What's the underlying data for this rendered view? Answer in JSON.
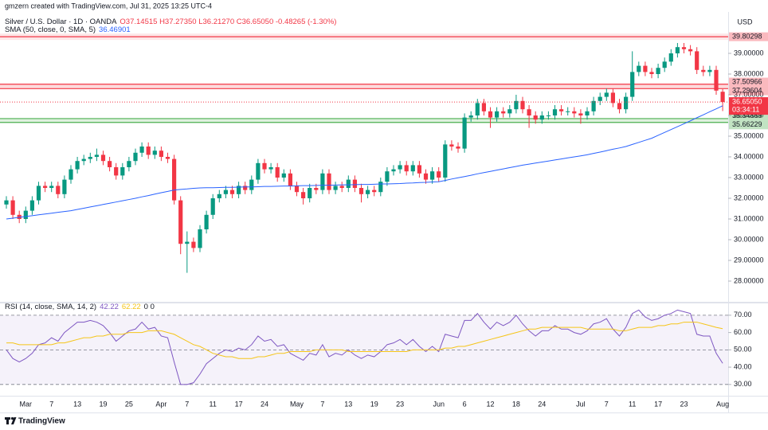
{
  "header": {
    "created": "gmzern created with TradingView.com, Jul 31, 2025 13:25 UTC-4",
    "symbol": "Silver / U.S. Dollar · 1D · OANDA",
    "quote": "O37.14515 H37.27350 L36.21270 C36.65050 -0.48265 (-1.30%)"
  },
  "chart_data": [
    {
      "type": "candlestick",
      "currency": "USD",
      "categories": [
        null,
        null,
        null,
        "Mar",
        null,
        null,
        null,
        "7",
        null,
        null,
        null,
        "13",
        null,
        null,
        null,
        "19",
        null,
        null,
        null,
        "25",
        null,
        null,
        null,
        null,
        "Apr",
        null,
        null,
        null,
        "7",
        null,
        null,
        null,
        "11",
        null,
        null,
        null,
        "17",
        null,
        null,
        null,
        "24",
        null,
        null,
        null,
        null,
        "May",
        null,
        null,
        null,
        "7",
        null,
        null,
        null,
        "13",
        null,
        null,
        null,
        "19",
        null,
        null,
        null,
        "23",
        null,
        null,
        null,
        null,
        null,
        "Jun",
        null,
        null,
        null,
        "6",
        null,
        null,
        null,
        "12",
        null,
        null,
        null,
        "18",
        null,
        null,
        null,
        "24",
        null,
        null,
        null,
        null,
        null,
        "Jul",
        null,
        null,
        null,
        "7",
        null,
        null,
        null,
        "11",
        null,
        null,
        null,
        "17",
        null,
        null,
        null,
        "23",
        null,
        null,
        null,
        null,
        null,
        "Aug"
      ],
      "ohlc": {
        "up_color": "#089981",
        "down_color": "#f23645",
        "open": [
          31.7,
          31.9,
          31.2,
          31.0,
          31.4,
          31.9,
          32.6,
          32.5,
          32.6,
          32.2,
          32.9,
          33.4,
          33.8,
          33.9,
          34.0,
          34.1,
          33.8,
          33.5,
          33.1,
          33.5,
          33.8,
          34.2,
          34.5,
          34.1,
          34.3,
          34.0,
          33.9,
          31.9,
          29.8,
          29.9,
          29.6,
          30.5,
          31.2,
          32.0,
          32.2,
          32.4,
          32.2,
          32.6,
          32.4,
          32.9,
          33.7,
          33.4,
          33.5,
          33.0,
          33.2,
          32.6,
          32.3,
          32.0,
          32.5,
          32.4,
          33.2,
          32.4,
          32.6,
          32.5,
          32.9,
          32.5,
          32.2,
          32.4,
          32.3,
          32.8,
          33.3,
          33.4,
          33.6,
          33.3,
          33.6,
          33.2,
          32.9,
          33.3,
          33.0,
          34.6,
          34.5,
          34.4,
          35.9,
          36.0,
          36.6,
          36.2,
          35.9,
          36.2,
          36.1,
          36.3,
          36.7,
          36.3,
          36.0,
          35.8,
          36.0,
          36.0,
          36.3,
          36.2,
          36.2,
          36.1,
          36.0,
          36.2,
          36.7,
          36.9,
          37.1,
          36.6,
          36.3,
          36.9,
          38.1,
          38.4,
          38.1,
          38.0,
          38.3,
          38.6,
          39.0,
          39.3,
          39.2,
          39.1,
          38.2,
          38.1,
          38.2,
          37.14515
        ],
        "high": [
          32.1,
          32.1,
          31.4,
          31.6,
          32.1,
          32.8,
          32.8,
          32.8,
          32.8,
          33.1,
          33.6,
          34.0,
          34.1,
          34.2,
          34.4,
          34.3,
          34.0,
          33.7,
          33.7,
          34.0,
          34.4,
          34.7,
          34.7,
          34.5,
          34.5,
          34.2,
          34.1,
          32.1,
          30.4,
          30.1,
          30.7,
          31.4,
          32.2,
          32.4,
          32.6,
          32.6,
          32.8,
          32.8,
          33.1,
          33.9,
          33.9,
          33.7,
          33.7,
          33.4,
          33.4,
          32.8,
          32.5,
          32.7,
          32.7,
          33.4,
          33.4,
          32.8,
          32.8,
          33.1,
          33.1,
          32.7,
          32.6,
          32.6,
          33.0,
          33.5,
          33.6,
          33.8,
          33.8,
          33.8,
          33.8,
          33.4,
          33.5,
          33.5,
          34.8,
          34.8,
          34.7,
          36.1,
          36.2,
          36.8,
          36.8,
          36.4,
          36.4,
          36.4,
          36.5,
          37.0,
          36.9,
          36.5,
          36.2,
          36.2,
          36.2,
          36.5,
          36.5,
          36.4,
          36.4,
          36.3,
          36.4,
          36.9,
          37.1,
          37.3,
          37.3,
          36.8,
          37.1,
          39.1,
          38.6,
          38.6,
          38.3,
          38.5,
          38.8,
          39.2,
          39.5,
          39.5,
          39.4,
          39.3,
          38.4,
          38.4,
          38.4,
          37.2735
        ],
        "low": [
          31.5,
          31.0,
          30.8,
          30.8,
          31.2,
          31.7,
          32.3,
          32.3,
          32.0,
          32.0,
          32.7,
          33.2,
          33.6,
          33.7,
          33.8,
          33.6,
          33.3,
          32.9,
          32.9,
          33.3,
          33.6,
          34.0,
          33.9,
          33.9,
          33.8,
          33.7,
          31.7,
          29.3,
          28.4,
          29.4,
          29.4,
          30.3,
          31.0,
          31.8,
          32.0,
          32.0,
          32.0,
          32.2,
          32.2,
          32.7,
          33.2,
          33.2,
          32.8,
          32.8,
          32.4,
          32.1,
          31.7,
          31.8,
          32.2,
          32.2,
          32.2,
          32.2,
          32.3,
          32.3,
          32.3,
          31.8,
          32.0,
          32.1,
          32.1,
          32.6,
          33.1,
          33.2,
          33.1,
          33.1,
          33.0,
          32.7,
          32.7,
          32.8,
          32.8,
          34.3,
          34.2,
          34.2,
          35.7,
          35.8,
          36.0,
          35.4,
          35.7,
          35.9,
          35.9,
          36.1,
          36.1,
          35.4,
          35.6,
          35.6,
          35.8,
          35.8,
          36.0,
          36.0,
          35.9,
          35.6,
          35.8,
          36.0,
          36.5,
          36.7,
          36.4,
          36.1,
          36.1,
          36.7,
          37.9,
          37.9,
          37.8,
          37.8,
          38.1,
          38.4,
          38.8,
          39.0,
          38.9,
          38.0,
          37.9,
          37.9,
          37.0,
          36.2127
        ],
        "close": [
          31.9,
          31.2,
          31.0,
          31.4,
          31.9,
          32.6,
          32.5,
          32.6,
          32.2,
          32.9,
          33.4,
          33.8,
          33.9,
          34.0,
          34.1,
          33.8,
          33.5,
          33.1,
          33.5,
          33.8,
          34.2,
          34.5,
          34.1,
          34.3,
          34.0,
          33.9,
          31.9,
          29.8,
          29.9,
          29.6,
          30.5,
          31.2,
          32.0,
          32.2,
          32.4,
          32.2,
          32.6,
          32.4,
          32.9,
          33.7,
          33.4,
          33.5,
          33.0,
          33.2,
          32.6,
          32.3,
          32.0,
          32.5,
          32.4,
          33.2,
          32.4,
          32.6,
          32.5,
          32.9,
          32.5,
          32.2,
          32.4,
          32.3,
          32.8,
          33.3,
          33.4,
          33.6,
          33.3,
          33.6,
          33.2,
          32.9,
          33.3,
          33.0,
          34.6,
          34.5,
          34.4,
          35.9,
          36.0,
          36.6,
          36.2,
          35.9,
          36.2,
          36.1,
          36.3,
          36.7,
          36.3,
          36.0,
          35.8,
          36.0,
          36.0,
          36.3,
          36.2,
          36.2,
          36.1,
          36.0,
          36.2,
          36.7,
          36.9,
          37.1,
          36.6,
          36.3,
          36.9,
          38.1,
          38.4,
          38.1,
          38.0,
          38.3,
          38.6,
          39.0,
          39.3,
          39.2,
          39.1,
          38.2,
          38.1,
          38.2,
          37.2,
          36.6505
        ]
      },
      "series": [
        {
          "name": "SMA (50, close, 0, SMA, 5)",
          "color": "#2962ff",
          "values": [
            31.0,
            31.04,
            31.08,
            31.12,
            31.16,
            31.2,
            31.24,
            31.28,
            31.32,
            31.36,
            31.4,
            31.46,
            31.52,
            31.58,
            31.64,
            31.7,
            31.76,
            31.82,
            31.88,
            31.94,
            32.0,
            32.07,
            32.13,
            32.2,
            32.27,
            32.33,
            32.4,
            32.43,
            32.45,
            32.48,
            32.5,
            32.51,
            32.51,
            32.52,
            32.53,
            32.53,
            32.54,
            32.55,
            32.55,
            32.56,
            32.57,
            32.57,
            32.58,
            32.59,
            32.59,
            32.6,
            32.61,
            32.61,
            32.62,
            32.63,
            32.63,
            32.64,
            32.65,
            32.65,
            32.66,
            32.67,
            32.67,
            32.68,
            32.69,
            32.69,
            32.7,
            32.71,
            32.73,
            32.74,
            32.76,
            32.77,
            32.79,
            32.8,
            32.86,
            32.93,
            32.99,
            33.05,
            33.11,
            33.18,
            33.24,
            33.3,
            33.36,
            33.42,
            33.48,
            33.54,
            33.6,
            33.65,
            33.7,
            33.75,
            33.8,
            33.85,
            33.9,
            33.95,
            34.0,
            34.05,
            34.1,
            34.17,
            34.23,
            34.3,
            34.37,
            34.43,
            34.5,
            34.6,
            34.7,
            34.8,
            34.9,
            35.04,
            35.18,
            35.32,
            35.46,
            35.6,
            35.74,
            35.89,
            36.03,
            36.18,
            36.32,
            36.46901
          ]
        }
      ],
      "ylim": [
        27,
        41
      ],
      "yticks": [
        {
          "value": 28,
          "label": "28.00000"
        },
        {
          "value": 29,
          "label": "29.00000"
        },
        {
          "value": 30,
          "label": "30.00000"
        },
        {
          "value": 31,
          "label": "31.00000"
        },
        {
          "value": 32,
          "label": "32.00000"
        },
        {
          "value": 33,
          "label": "33.00000"
        },
        {
          "value": 34,
          "label": "34.00000"
        },
        {
          "value": 35,
          "label": "35.00000"
        },
        {
          "value": 36,
          "label": "36.00000"
        },
        {
          "value": 37,
          "label": "37.00000"
        },
        {
          "value": 38,
          "label": "38.00000"
        },
        {
          "value": 39,
          "label": "39.00000"
        }
      ],
      "grid": false,
      "lines": [
        {
          "value": 39.80298,
          "color": "#f23645"
        }
      ],
      "bands": [
        {
          "from": 37.29604,
          "to": 37.50966,
          "color": "#f23645"
        },
        {
          "from": 35.66229,
          "to": 35.84869,
          "color": "#4caf50"
        }
      ],
      "current_price": {
        "value": 36.6505,
        "label": "36.65050",
        "countdown": "03:34:11",
        "color": "#f23645"
      }
    },
    {
      "type": "line",
      "title": "RSI (14, close, SMA, 14, 2)",
      "legend_suffix": "0 0",
      "series": [
        {
          "color": "#7e57c2",
          "values": [
            50,
            45,
            43,
            45,
            48,
            53,
            54,
            57,
            55,
            60,
            63,
            66,
            66,
            67,
            66,
            64,
            60,
            55,
            58,
            61,
            62,
            66,
            62,
            63,
            58,
            57,
            43,
            30,
            30,
            31,
            36,
            42,
            45,
            48,
            50,
            49,
            51,
            50,
            53,
            58,
            55,
            56,
            52,
            53,
            48,
            46,
            44,
            48,
            47,
            53,
            46,
            48,
            47,
            50,
            47,
            45,
            47,
            46,
            49,
            53,
            54,
            56,
            53,
            56,
            52,
            49,
            52,
            49,
            59,
            58,
            57,
            67,
            67,
            71,
            66,
            62,
            66,
            64,
            66,
            70,
            65,
            61,
            58,
            61,
            61,
            64,
            62,
            62,
            60,
            59,
            61,
            65,
            66,
            68,
            62,
            58,
            63,
            71,
            73,
            69,
            67,
            68,
            70,
            71,
            73,
            72,
            71,
            59,
            58,
            58,
            48,
            42.22
          ]
        },
        {
          "color": "#f5c518",
          "values": [
            54,
            54,
            53,
            53,
            53,
            53,
            53,
            53,
            54,
            54,
            55,
            56,
            57,
            57,
            58,
            58,
            59,
            59,
            59,
            60,
            60,
            60,
            61,
            61,
            61,
            60,
            59,
            57,
            55,
            53,
            52,
            50,
            48,
            47,
            46,
            46,
            45,
            45,
            45,
            46,
            46,
            47,
            48,
            48,
            49,
            49,
            49,
            49,
            50,
            50,
            50,
            50,
            50,
            49,
            49,
            49,
            49,
            49,
            49,
            49,
            49,
            49,
            49,
            50,
            50,
            50,
            50,
            50,
            51,
            51,
            52,
            52,
            53,
            54,
            55,
            56,
            57,
            58,
            59,
            60,
            61,
            62,
            62,
            63,
            63,
            63,
            63,
            63,
            63,
            63,
            62,
            62,
            62,
            62,
            62,
            61,
            61,
            62,
            63,
            63,
            63,
            64,
            64,
            65,
            65,
            66,
            66,
            66,
            65,
            64,
            63,
            62.22
          ]
        }
      ],
      "ylim": [
        24.4,
        75
      ],
      "yticks": [
        {
          "value": 30,
          "label": "30.00"
        },
        {
          "value": 40,
          "label": "40.00"
        },
        {
          "value": 50,
          "label": "50.00"
        },
        {
          "value": 60,
          "label": "60.00"
        },
        {
          "value": 70,
          "label": "70.00"
        }
      ],
      "band": {
        "from": 30,
        "to": 70,
        "color": "#7e57c2"
      },
      "dashed_levels": [
        30,
        50,
        70
      ]
    }
  ],
  "footer": {
    "brand": "TradingView"
  }
}
